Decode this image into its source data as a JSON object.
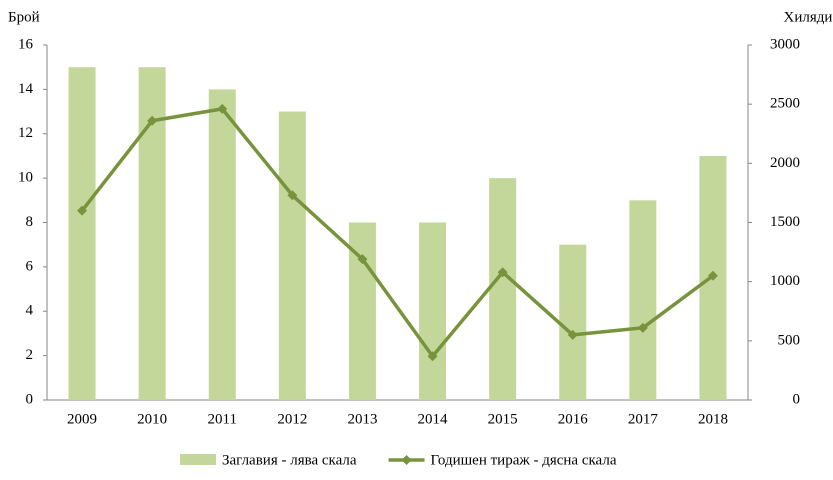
{
  "chart_data": {
    "type": "combo",
    "y_label": "Брой",
    "y2_label": "Хиляди",
    "categories": [
      "2009",
      "2010",
      "2011",
      "2012",
      "2013",
      "2014",
      "2015",
      "2016",
      "2017",
      "2018"
    ],
    "series": [
      {
        "name": "Заглавия - лява скала",
        "color": "#c4d79b",
        "type": "bar",
        "values": [
          15,
          15,
          14,
          13,
          8,
          8,
          10,
          7,
          9,
          11
        ]
      },
      {
        "name": "Годишен тираж - дясна скала",
        "color": "#77933c",
        "type": "line",
        "axis": "y2",
        "values": [
          1600,
          2360,
          2460,
          1730,
          1190,
          370,
          1080,
          550,
          610,
          1050
        ]
      }
    ],
    "ylim": [
      0,
      16
    ],
    "yticks": [
      0,
      2,
      4,
      6,
      8,
      10,
      12,
      14,
      16
    ],
    "y2lim": [
      0,
      3000
    ],
    "y2ticks": [
      0,
      500,
      1000,
      1500,
      2000,
      2500,
      3000
    ],
    "grid": false,
    "legend": "bottom"
  }
}
